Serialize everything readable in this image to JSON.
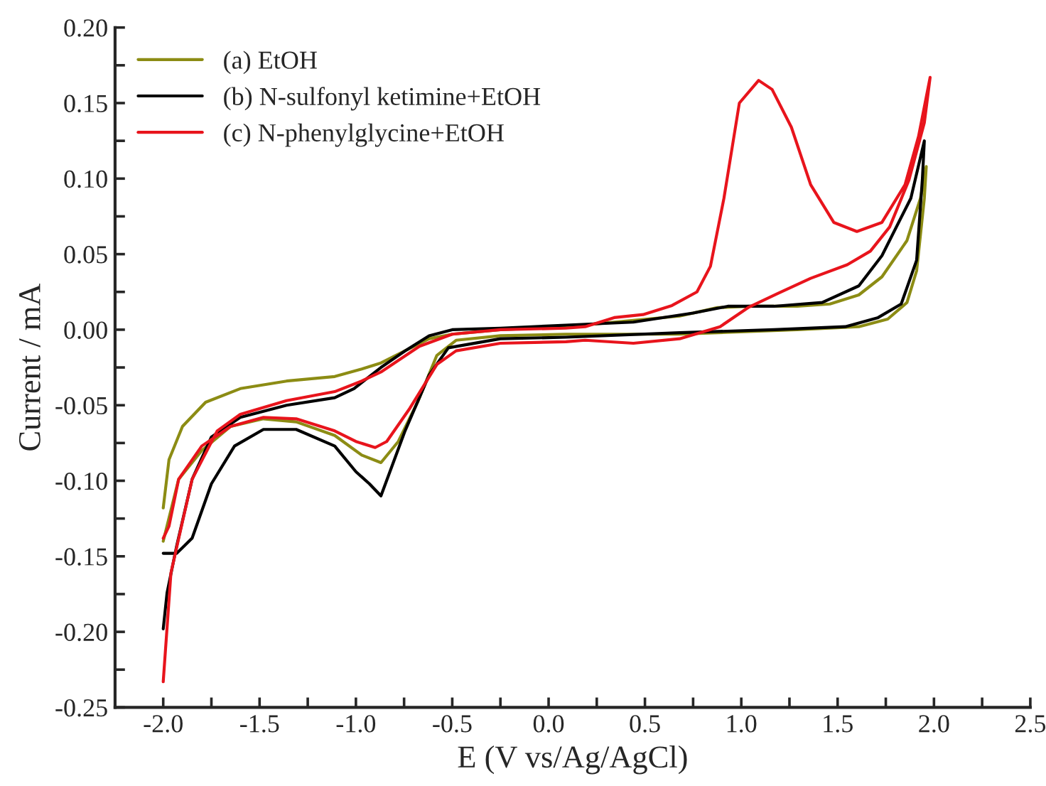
{
  "chart_data": {
    "type": "line",
    "xlabel": "E (V vs/Ag/AgCl)",
    "ylabel": "Current / mA",
    "xlim": [
      -2.25,
      2.5
    ],
    "ylim": [
      -0.25,
      0.2
    ],
    "xticks": [
      {
        "value": -2.0,
        "label": "-2.0"
      },
      {
        "value": -1.75,
        "label": null
      },
      {
        "value": -1.5,
        "label": "-1.5"
      },
      {
        "value": -1.25,
        "label": null
      },
      {
        "value": -1.0,
        "label": "-1.0"
      },
      {
        "value": -0.75,
        "label": null
      },
      {
        "value": -0.5,
        "label": "-0.5"
      },
      {
        "value": -0.25,
        "label": null
      },
      {
        "value": 0.0,
        "label": "0.0"
      },
      {
        "value": 0.25,
        "label": null
      },
      {
        "value": 0.5,
        "label": "0.5"
      },
      {
        "value": 0.75,
        "label": null
      },
      {
        "value": 1.0,
        "label": "1.0"
      },
      {
        "value": 1.25,
        "label": null
      },
      {
        "value": 1.5,
        "label": "1.5"
      },
      {
        "value": 1.75,
        "label": null
      },
      {
        "value": 2.0,
        "label": "2.0"
      },
      {
        "value": 2.25,
        "label": null
      },
      {
        "value": 2.5,
        "label": "2.5"
      }
    ],
    "yticks": [
      {
        "value": -0.25,
        "label": "-0.25"
      },
      {
        "value": -0.225,
        "label": null
      },
      {
        "value": -0.2,
        "label": "-0.20"
      },
      {
        "value": -0.175,
        "label": null
      },
      {
        "value": -0.15,
        "label": "-0.15"
      },
      {
        "value": -0.125,
        "label": null
      },
      {
        "value": -0.1,
        "label": "-0.10"
      },
      {
        "value": -0.075,
        "label": null
      },
      {
        "value": -0.05,
        "label": "-0.05"
      },
      {
        "value": -0.025,
        "label": null
      },
      {
        "value": 0.0,
        "label": "0.00"
      },
      {
        "value": 0.025,
        "label": null
      },
      {
        "value": 0.05,
        "label": "0.05"
      },
      {
        "value": 0.075,
        "label": null
      },
      {
        "value": 0.1,
        "label": "0.10"
      },
      {
        "value": 0.125,
        "label": null
      },
      {
        "value": 0.15,
        "label": "0.15"
      },
      {
        "value": 0.175,
        "label": null
      },
      {
        "value": 0.2,
        "label": "0.20"
      }
    ],
    "grid": false,
    "legend": "top left",
    "marker": "none",
    "line_style": "solid",
    "series": [
      {
        "name": "(a) EtOH",
        "color": "#8c8c14",
        "x": [
          -2.0,
          -1.97,
          -1.9,
          -1.78,
          -1.6,
          -1.36,
          -1.11,
          -0.97,
          -0.87,
          -0.745,
          -0.62,
          -0.5,
          -0.25,
          0.09,
          0.68,
          0.876,
          1.05,
          1.29,
          1.46,
          1.61,
          1.73,
          1.86,
          1.93,
          1.96,
          1.95,
          1.91,
          1.86,
          1.76,
          1.61,
          1.29,
          0.68,
          0.09,
          -0.25,
          -0.48,
          -0.58,
          -0.68,
          -0.78,
          -0.87,
          -0.97,
          -1.11,
          -1.31,
          -1.48,
          -1.65,
          -1.8,
          -1.92,
          -2.0
        ],
        "values": [
          -0.118,
          -0.086,
          -0.064,
          -0.048,
          -0.039,
          -0.034,
          -0.031,
          -0.026,
          -0.022,
          -0.014,
          -0.006,
          -0.003,
          0.0,
          0.002,
          0.009,
          0.0146,
          0.0155,
          0.0155,
          0.017,
          0.023,
          0.035,
          0.059,
          0.087,
          0.108,
          0.087,
          0.039,
          0.018,
          0.007,
          0.002,
          0.0,
          -0.003,
          -0.003,
          -0.004,
          -0.007,
          -0.017,
          -0.048,
          -0.074,
          -0.088,
          -0.083,
          -0.07,
          -0.061,
          -0.059,
          -0.064,
          -0.08,
          -0.099,
          -0.14
        ]
      },
      {
        "name": "(b) N-sulfonyl ketimine+EtOH",
        "color": "#000000",
        "x": [
          -2.0,
          -1.98,
          -1.93,
          -1.85,
          -1.75,
          -1.6,
          -1.36,
          -1.11,
          -1.01,
          -0.87,
          -0.745,
          -0.62,
          -0.5,
          -0.25,
          0.09,
          0.44,
          0.75,
          0.93,
          1.17,
          1.42,
          1.61,
          1.73,
          1.88,
          1.95,
          1.94,
          1.91,
          1.83,
          1.71,
          1.54,
          1.17,
          0.68,
          0.09,
          -0.25,
          -0.52,
          -0.62,
          -0.745,
          -0.87,
          -0.93,
          -1.0,
          -1.11,
          -1.31,
          -1.48,
          -1.63,
          -1.75,
          -1.85,
          -1.93,
          -2.0
        ],
        "values": [
          -0.198,
          -0.174,
          -0.143,
          -0.099,
          -0.071,
          -0.058,
          -0.05,
          -0.045,
          -0.039,
          -0.025,
          -0.014,
          -0.004,
          0.0,
          0.001,
          0.003,
          0.005,
          0.011,
          0.0155,
          0.0155,
          0.018,
          0.029,
          0.049,
          0.087,
          0.125,
          0.1,
          0.046,
          0.017,
          0.008,
          0.002,
          0.0,
          -0.002,
          -0.005,
          -0.006,
          -0.012,
          -0.03,
          -0.067,
          -0.11,
          -0.102,
          -0.094,
          -0.077,
          -0.066,
          -0.066,
          -0.077,
          -0.102,
          -0.138,
          -0.148,
          -0.148
        ]
      },
      {
        "name": "(c) N-phenylglycine+EtOH",
        "color": "#e8141c",
        "x": [
          -2.0,
          -1.96,
          -1.9,
          -1.85,
          -1.72,
          -1.6,
          -1.36,
          -1.11,
          -0.97,
          -0.87,
          -0.67,
          -0.5,
          -0.25,
          0.09,
          0.19,
          0.34,
          0.49,
          0.64,
          0.77,
          0.84,
          0.91,
          0.99,
          1.09,
          1.16,
          1.26,
          1.36,
          1.48,
          1.6,
          1.73,
          1.85,
          1.92,
          1.98,
          1.95,
          1.87,
          1.77,
          1.67,
          1.55,
          1.36,
          1.19,
          1.04,
          0.89,
          0.68,
          0.44,
          0.19,
          0.09,
          -0.25,
          -0.48,
          -0.58,
          -0.72,
          -0.84,
          -0.9,
          -1.0,
          -1.11,
          -1.31,
          -1.48,
          -1.65,
          -1.8,
          -1.92,
          -1.97,
          -2.0
        ],
        "values": [
          -0.233,
          -0.161,
          -0.127,
          -0.099,
          -0.067,
          -0.056,
          -0.047,
          -0.041,
          -0.034,
          -0.028,
          -0.011,
          -0.003,
          0.0,
          0.001,
          0.002,
          0.008,
          0.01,
          0.016,
          0.025,
          0.042,
          0.087,
          0.15,
          0.165,
          0.159,
          0.134,
          0.096,
          0.071,
          0.065,
          0.071,
          0.096,
          0.128,
          0.167,
          0.137,
          0.099,
          0.068,
          0.052,
          0.043,
          0.034,
          0.024,
          0.015,
          0.002,
          -0.006,
          -0.009,
          -0.007,
          -0.008,
          -0.009,
          -0.014,
          -0.023,
          -0.052,
          -0.074,
          -0.078,
          -0.074,
          -0.067,
          -0.059,
          -0.058,
          -0.064,
          -0.077,
          -0.099,
          -0.13,
          -0.138
        ]
      }
    ]
  }
}
